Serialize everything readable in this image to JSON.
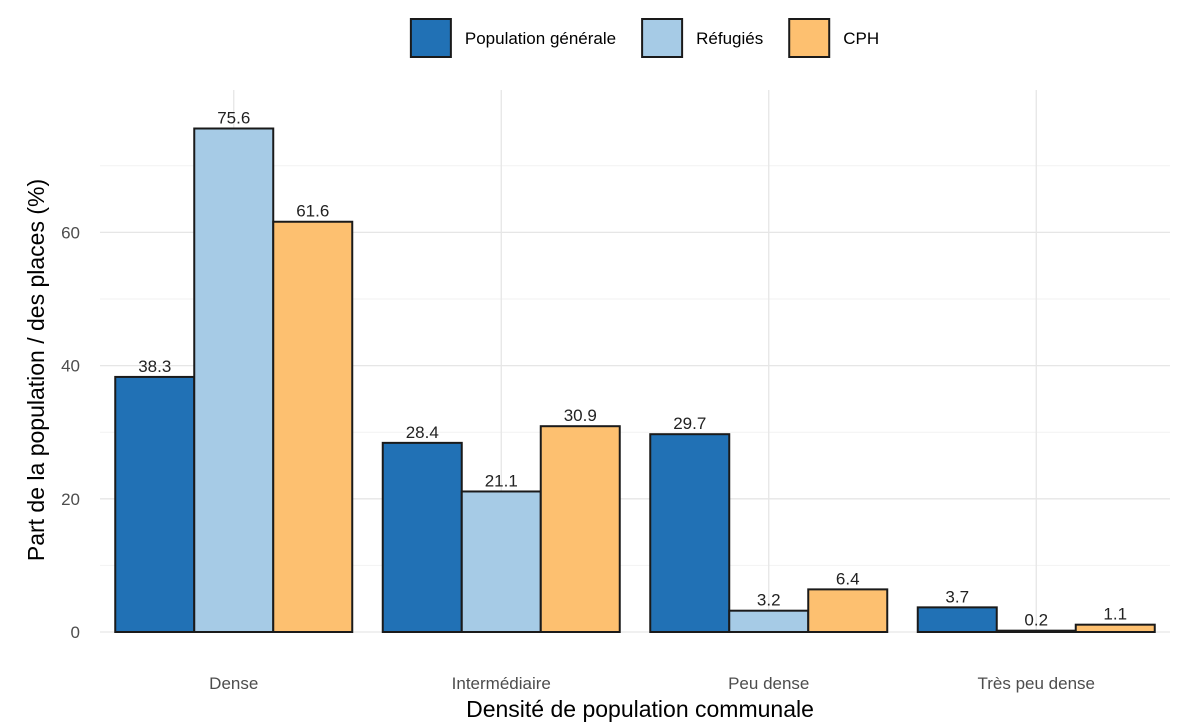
{
  "chart_data": {
    "type": "bar",
    "categories": [
      "Dense",
      "Intermédiaire",
      "Peu dense",
      "Très peu dense"
    ],
    "series": [
      {
        "name": "Population générale",
        "color": "#2171b5",
        "values": [
          38.3,
          28.4,
          29.7,
          3.7
        ]
      },
      {
        "name": "Réfugiés",
        "color": "#a6cbe6",
        "values": [
          75.6,
          21.1,
          3.2,
          0.2
        ]
      },
      {
        "name": "CPH",
        "color": "#fdc070",
        "values": [
          61.6,
          30.9,
          6.4,
          1.1
        ]
      }
    ],
    "data_labels": [
      [
        "38.3",
        "75.6",
        "61.6"
      ],
      [
        "28.4",
        "21.1",
        "30.9"
      ],
      [
        "29.7",
        "3.2",
        "6.4"
      ],
      [
        "3.7",
        "0.2",
        "1.1"
      ]
    ],
    "title": "",
    "xlabel": "Densité de population communale",
    "ylabel": "Part de la population / des places (%)",
    "ylim": [
      0,
      79
    ],
    "yticks": [
      0,
      20,
      40,
      60
    ],
    "ytick_labels": [
      "0",
      "20",
      "40",
      "60"
    ],
    "grid": true,
    "legend_position": "top"
  }
}
